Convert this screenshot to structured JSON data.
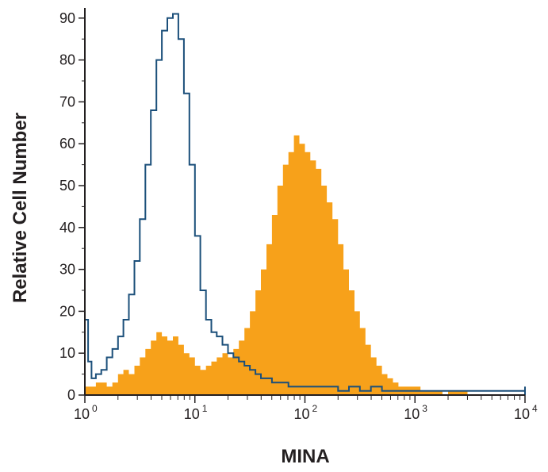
{
  "chart_data": {
    "type": "area",
    "title": "",
    "xlabel": "MINA",
    "ylabel": "Relative Cell Number",
    "x_scale": "log",
    "xlim": [
      1,
      10000
    ],
    "ylim": [
      0,
      100
    ],
    "x_ticks": [
      {
        "base": "10",
        "exp": "0",
        "value": 1
      },
      {
        "base": "10",
        "exp": "1",
        "value": 10
      },
      {
        "base": "10",
        "exp": "2",
        "value": 100
      },
      {
        "base": "10",
        "exp": "3",
        "value": 1000
      },
      {
        "base": "10",
        "exp": "4",
        "value": 10000
      }
    ],
    "y_ticks": [
      "0",
      "10",
      "20",
      "30",
      "40",
      "50",
      "60",
      "70",
      "80",
      "90"
    ],
    "grid": false,
    "legend": "none",
    "series": [
      {
        "style": "filled-histogram",
        "color": "#f7a11a",
        "x": [
          1.0,
          1.12,
          1.26,
          1.41,
          1.58,
          1.78,
          2.0,
          2.24,
          2.51,
          2.82,
          3.16,
          3.55,
          3.98,
          4.47,
          5.01,
          5.62,
          6.31,
          7.08,
          7.94,
          8.91,
          10.0,
          11.2,
          12.6,
          14.1,
          15.8,
          17.8,
          20.0,
          22.4,
          25.1,
          28.2,
          31.6,
          35.5,
          39.8,
          44.7,
          50.1,
          56.2,
          63.1,
          70.8,
          79.4,
          89.1,
          100,
          112,
          126,
          141,
          158,
          178,
          200,
          224,
          251,
          282,
          316,
          355,
          398,
          447,
          501,
          562,
          631,
          708,
          794,
          891,
          1000,
          1122,
          1259,
          1413,
          1585,
          1778,
          2000,
          2239,
          2512,
          2818,
          3000
        ],
        "y": [
          2,
          2,
          3,
          3,
          2,
          3,
          5,
          6,
          5,
          7,
          9,
          11,
          13,
          15,
          14,
          13,
          14,
          12,
          10,
          9,
          7,
          6,
          7,
          8,
          9,
          10,
          9,
          11,
          13,
          16,
          20,
          25,
          30,
          36,
          43,
          50,
          55,
          58,
          62,
          60,
          58,
          56,
          54,
          50,
          46,
          42,
          36,
          30,
          25,
          20,
          16,
          12,
          9,
          7,
          5,
          4,
          3,
          2,
          2,
          2,
          2,
          1,
          1,
          1,
          1,
          0,
          1,
          1,
          1,
          1,
          0
        ]
      },
      {
        "style": "outline-histogram",
        "color": "#1b4f7a",
        "x": [
          1.0,
          1.07,
          1.15,
          1.26,
          1.41,
          1.58,
          1.78,
          2.0,
          2.24,
          2.51,
          2.82,
          3.16,
          3.55,
          3.98,
          4.47,
          5.01,
          5.62,
          6.31,
          7.08,
          7.94,
          8.91,
          10.0,
          11.2,
          12.6,
          14.1,
          15.8,
          17.8,
          20.0,
          22.4,
          25.1,
          28.2,
          31.6,
          35.5,
          39.8,
          44.7,
          50.1,
          56.2,
          63.1,
          70.8,
          79.4,
          100,
          126,
          158,
          200,
          251,
          316,
          398,
          501,
          631,
          794,
          1000,
          1259,
          1585,
          2000,
          3162,
          5012,
          7943,
          10000
        ],
        "y": [
          18,
          8,
          4,
          5,
          6,
          9,
          11,
          14,
          18,
          24,
          32,
          42,
          55,
          68,
          80,
          87,
          90,
          91,
          85,
          72,
          55,
          38,
          25,
          18,
          15,
          14,
          12,
          10,
          9,
          8,
          7,
          6,
          5,
          4,
          4,
          3,
          3,
          3,
          2,
          2,
          2,
          2,
          2,
          1,
          2,
          1,
          2,
          1,
          1,
          1,
          1,
          1,
          1,
          1,
          1,
          1,
          1,
          2
        ]
      }
    ]
  }
}
